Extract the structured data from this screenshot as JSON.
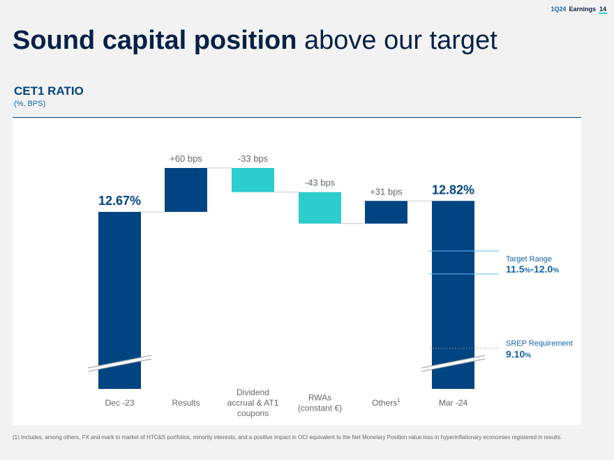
{
  "header": {
    "tag": "1Q24",
    "label": "Earnings",
    "page": "14"
  },
  "title": {
    "bold": "Sound capital position",
    "regular": "above our target"
  },
  "section": {
    "title": "CET1 RATIO",
    "subtitle": "(%, BPS)"
  },
  "colors": {
    "navy": "#004481",
    "aqua": "#2dcccd",
    "text": "#072146",
    "label": "#666666",
    "accent": "#1464a5"
  },
  "chart_data": {
    "type": "waterfall",
    "unit": "%",
    "categories": [
      {
        "lines": [
          "Dec -23"
        ]
      },
      {
        "lines": [
          "Results"
        ]
      },
      {
        "lines": [
          "Dividend",
          "accrual & AT1",
          "coupons"
        ]
      },
      {
        "lines": [
          "RWAs",
          "(constant €)"
        ]
      },
      {
        "lines": [
          "Others"
        ],
        "sup": "1"
      },
      {
        "lines": [
          "Mar -24"
        ]
      }
    ],
    "bars": [
      {
        "kind": "total",
        "value": 12.67,
        "label": "12.67%"
      },
      {
        "kind": "delta",
        "bps": 60,
        "label": "+60 bps"
      },
      {
        "kind": "delta",
        "bps": -33,
        "label": "-33 bps"
      },
      {
        "kind": "delta",
        "bps": -43,
        "label": "-43 bps"
      },
      {
        "kind": "delta",
        "bps": 31,
        "label": "+31 bps"
      },
      {
        "kind": "total",
        "value": 12.82,
        "label": "12.82%"
      }
    ],
    "target": {
      "label": "Target Range",
      "low": 11.5,
      "high": 12.0,
      "value_parts": [
        "11.5",
        "%",
        "-12.0",
        "%"
      ]
    },
    "srep": {
      "label": "SREP Requirement",
      "value": 9.1,
      "value_parts": [
        "9.10",
        "%"
      ]
    }
  },
  "footnote": "(1) Includes, among others, FX and mark to market of HTC&S portfolios, minority interests, and a positive impact in OCI equivalent to the Net Monetary Position value loss in hyperinflationary economies registered in results."
}
